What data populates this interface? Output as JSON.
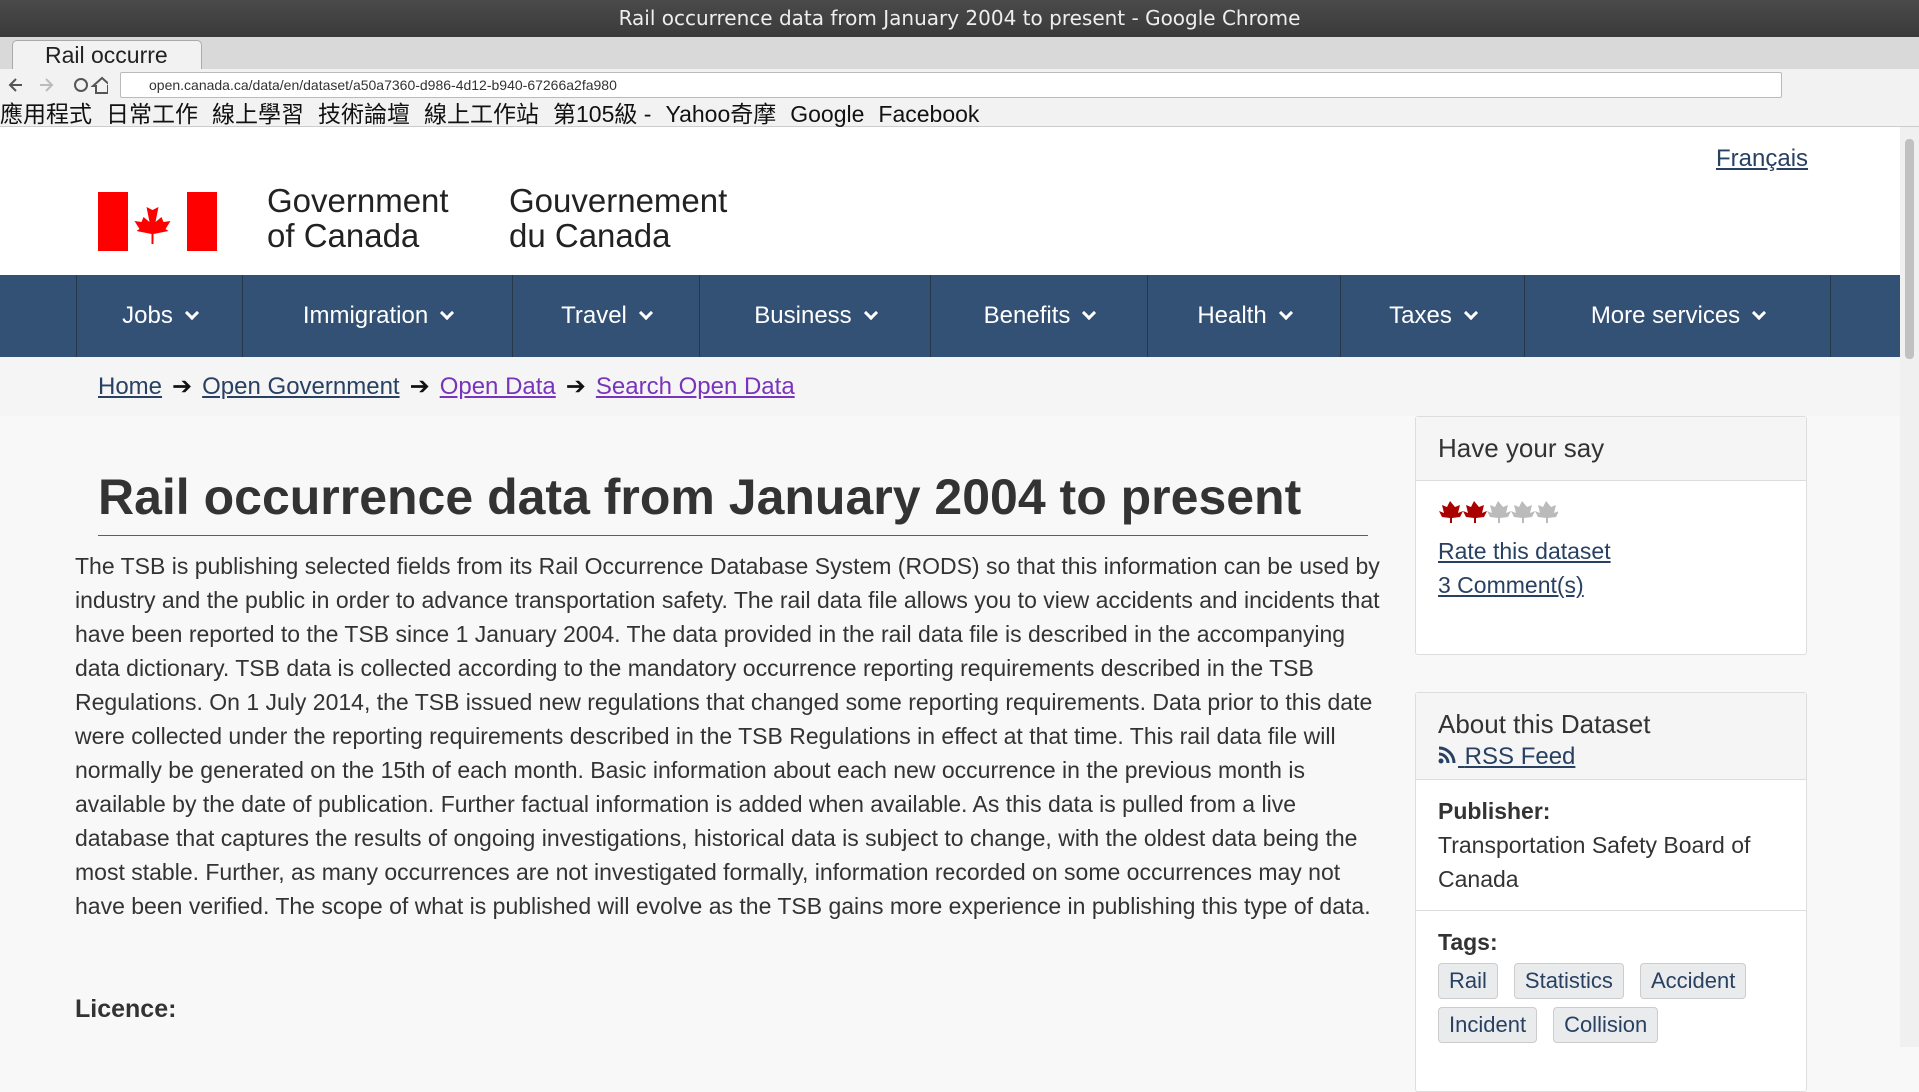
{
  "browser": {
    "window_title": "Rail occurrence data from January 2004 to present - Google Chrome",
    "tab_title": "Rail occurre",
    "url": "open.canada.ca/data/en/dataset/a50a7360-d986-4d12-b940-67266a2fa980",
    "bookmarks": [
      "應用程式",
      "日常工作",
      "線上學習",
      "技術論壇",
      "線上工作站",
      "第105級 -",
      "Yahoo奇摩",
      "Google",
      "Facebook"
    ]
  },
  "header": {
    "language_link": "Français",
    "name_en": [
      "Government",
      "of Canada"
    ],
    "name_fr": [
      "Gouvernement",
      "du Canada"
    ]
  },
  "nav": [
    "Jobs",
    "Immigration",
    "Travel",
    "Business",
    "Benefits",
    "Health",
    "Taxes",
    "More services"
  ],
  "breadcrumbs": [
    "Home",
    "Open Government",
    "Open Data",
    "Search Open Data"
  ],
  "main": {
    "title": "Rail occurrence data from January 2004 to present",
    "description": "The TSB is publishing selected fields from its Rail Occurrence Database System (RODS) so that this information can be used by industry and the public in order to advance transportation safety. The rail data file allows you to view accidents and incidents that have been reported to the TSB since 1 January 2004. The data provided in the rail data file is described in the accompanying data dictionary. TSB data is collected according to the mandatory occurrence reporting requirements described in the TSB Regulations. On 1 July 2014, the TSB issued new regulations that changed some reporting requirements. Data prior to this date were collected under the reporting requirements described in the TSB Regulations in effect at that time. This rail data file will normally be generated on the 15th of each month. Basic information about each new occurrence in the previous month is available by the date of publication. Further factual information is added when available. As this data is pulled from a live database that captures the results of ongoing investigations, historical data is subject to change, with the oldest data being the most stable. Further, as many occurrences are not investigated formally, information recorded on some occurrences may not have been verified. The scope of what is published will evolve as the TSB gains more experience in publishing this type of data.",
    "licence_heading": "Licence:"
  },
  "sidebar": {
    "have_your_say": {
      "heading": "Have your say",
      "rate_link": "Rate this dataset",
      "comments_link": "3 Comment(s)"
    },
    "about": {
      "heading": "About this Dataset",
      "rss": "RSS Feed",
      "publisher_label": "Publisher:",
      "publisher": "Transportation Safety Board of Canada",
      "tags_label": "Tags:",
      "tags": [
        "Rail",
        "Statistics",
        "Accident",
        "Incident",
        "Collision"
      ]
    }
  }
}
